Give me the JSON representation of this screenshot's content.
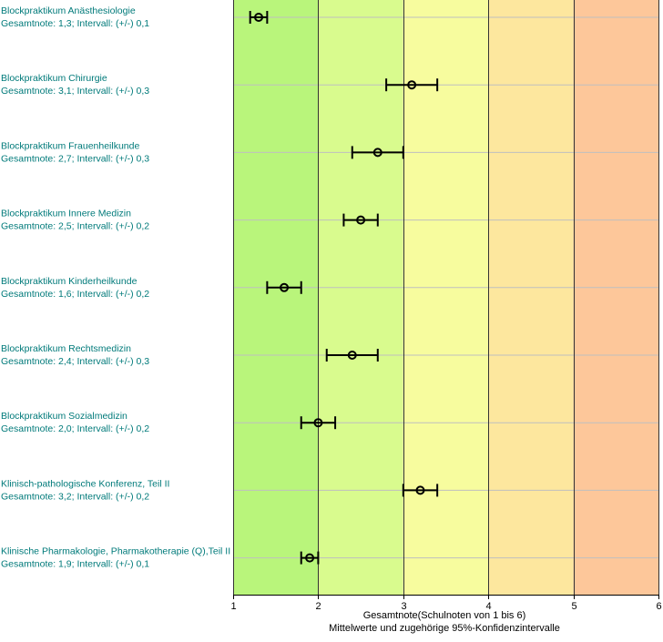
{
  "chart_data": {
    "type": "scatter",
    "orientation": "horizontal",
    "xlabel": "Gesamtnote(Schulnoten von 1 bis 6)",
    "xlabel_sub": "Mittelwerte und zugehörige 95%-Konfidenzintervalle",
    "xlim": [
      1,
      6
    ],
    "xticks": [
      1,
      2,
      3,
      4,
      5,
      6
    ],
    "grid": true,
    "bands": [
      {
        "from": 1,
        "to": 2,
        "color": "#b9f57b"
      },
      {
        "from": 2,
        "to": 3,
        "color": "#d9fb8e"
      },
      {
        "from": 3,
        "to": 4,
        "color": "#f7fc9e"
      },
      {
        "from": 4,
        "to": 5,
        "color": "#fde79e"
      },
      {
        "from": 5,
        "to": 6,
        "color": "#fdc79a"
      }
    ],
    "rows": [
      {
        "title": "Blockpraktikum Anästhesiologie",
        "subtitle": "Gesamtnote: 1,3;  Intervall: (+/-) 0,1",
        "mean": 1.3,
        "ci": 0.1
      },
      {
        "title": "Blockpraktikum Chirurgie",
        "subtitle": "Gesamtnote: 3,1;  Intervall: (+/-) 0,3",
        "mean": 3.1,
        "ci": 0.3
      },
      {
        "title": "Blockpraktikum Frauenheilkunde",
        "subtitle": "Gesamtnote: 2,7;  Intervall: (+/-) 0,3",
        "mean": 2.7,
        "ci": 0.3
      },
      {
        "title": "Blockpraktikum Innere Medizin",
        "subtitle": "Gesamtnote: 2,5;  Intervall: (+/-) 0,2",
        "mean": 2.5,
        "ci": 0.2
      },
      {
        "title": "Blockpraktikum Kinderheilkunde",
        "subtitle": "Gesamtnote: 1,6;  Intervall: (+/-) 0,2",
        "mean": 1.6,
        "ci": 0.2
      },
      {
        "title": "Blockpraktikum Rechtsmedizin",
        "subtitle": "Gesamtnote: 2,4;  Intervall: (+/-) 0,3",
        "mean": 2.4,
        "ci": 0.3
      },
      {
        "title": "Blockpraktikum Sozialmedizin",
        "subtitle": "Gesamtnote: 2,0;  Intervall: (+/-) 0,2",
        "mean": 2.0,
        "ci": 0.2
      },
      {
        "title": "Klinisch-pathologische Konferenz, Teil II",
        "subtitle": "Gesamtnote: 3,2;  Intervall: (+/-) 0,2",
        "mean": 3.2,
        "ci": 0.2
      },
      {
        "title": "Klinische Pharmakologie, Pharmakotherapie (Q),Teil II",
        "subtitle": "Gesamtnote: 1,9;  Intervall: (+/-) 0,1",
        "mean": 1.9,
        "ci": 0.1
      }
    ]
  }
}
